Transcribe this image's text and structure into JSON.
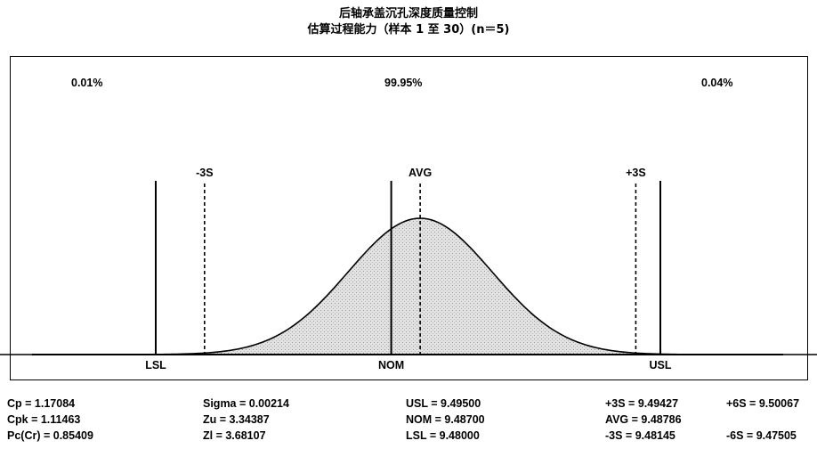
{
  "title": "后轴承盖沉孔深度质量控制",
  "subtitle": "估算过程能力（样本 1 至 30）(n＝5)",
  "percentages": {
    "below_lsl": "0.01%",
    "within": "99.95%",
    "above_usl": "0.04%"
  },
  "markers": {
    "minus3s": "-3S",
    "avg": "AVG",
    "plus3s": "+3S",
    "lsl": "LSL",
    "nom": "NOM",
    "usl": "USL"
  },
  "stats": {
    "cp": "Cp = 1.17084",
    "cpk": "Cpk = 1.11463",
    "pccr": "Pc(Cr) = 0.85409",
    "sigma": "Sigma = 0.00214",
    "zu": "Zu = 3.34387",
    "zl": "Zl = 3.68107",
    "usl": "USL = 9.49500",
    "nom": "NOM = 9.48700",
    "lsl": "LSL = 9.48000",
    "plus3s": "+3S = 9.49427",
    "avg": "AVG = 9.48786",
    "minus3s": "-3S = 9.48145",
    "plus6s": "+6S = 9.50067",
    "minus6s": "-6S = 9.47505"
  },
  "chart_data": {
    "type": "area",
    "title": "后轴承盖沉孔深度质量控制",
    "subtitle": "估算过程能力（样本 1 至 30）(n＝5)",
    "distribution": "normal",
    "mean": 9.48786,
    "sigma": 0.00214,
    "xlim": [
      9.47505,
      9.50067
    ],
    "spec_limits": {
      "LSL": 9.48,
      "NOM": 9.487,
      "USL": 9.495
    },
    "control_limits": {
      "-3S": 9.48145,
      "AVG": 9.48786,
      "+3S": 9.49427,
      "-6S": 9.47505,
      "+6S": 9.50067
    },
    "proportions": {
      "below_LSL": "0.01%",
      "within": "99.95%",
      "above_USL": "0.04%"
    },
    "indices": {
      "Cp": 1.17084,
      "Cpk": 1.11463,
      "Pc(Cr)": 0.85409,
      "Zu": 3.34387,
      "Zl": 3.68107
    },
    "grid": false,
    "colors": {
      "curve_fill": "#d6d6d6",
      "stroke": "#000000"
    }
  }
}
